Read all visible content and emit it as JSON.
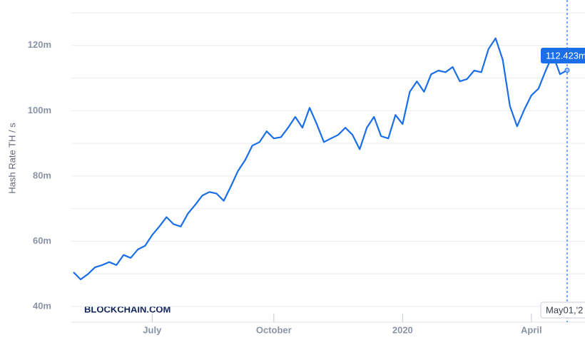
{
  "chart_data": {
    "type": "line",
    "y_axis_title": "Hash Rate TH / s",
    "brand": "BLOCKCHAIN.COM",
    "categories": [
      null,
      null,
      null,
      null,
      null,
      null,
      null,
      null,
      null,
      null,
      null,
      "July",
      null,
      null,
      null,
      null,
      null,
      null,
      null,
      null,
      null,
      null,
      null,
      null,
      null,
      null,
      null,
      null,
      "October",
      null,
      null,
      null,
      null,
      null,
      null,
      null,
      null,
      null,
      null,
      null,
      null,
      null,
      null,
      null,
      null,
      null,
      "2020",
      null,
      null,
      null,
      null,
      null,
      null,
      null,
      null,
      null,
      null,
      null,
      null,
      null,
      null,
      null,
      null,
      null,
      "April",
      null,
      null,
      null,
      null,
      null
    ],
    "series": [
      {
        "name": "Hash Rate",
        "color": "#1a6ee8",
        "values": [
          50.5,
          48.3,
          49.9,
          52,
          52.7,
          53.6,
          52.7,
          55.8,
          54.9,
          57.5,
          58.6,
          61.9,
          64.5,
          67.4,
          65.2,
          64.5,
          68.5,
          71.1,
          74,
          75.1,
          74.6,
          72.4,
          76.8,
          81.6,
          84.9,
          89.3,
          90.4,
          93.7,
          91.5,
          91.9,
          94.8,
          98.1,
          94.8,
          100.9,
          95.9,
          90.4,
          91.5,
          92.6,
          94.8,
          92.6,
          88.2,
          94.8,
          98.1,
          92.2,
          91.5,
          98.7,
          95.9,
          105.8,
          109,
          105.8,
          111.2,
          112.3,
          111.8,
          113.4,
          109,
          109.7,
          112.3,
          111.8,
          118.9,
          122.2,
          115.6,
          101.4,
          95.2,
          100.3,
          104.7,
          106.8,
          112.3,
          117.2,
          111.2,
          112.423
        ]
      }
    ],
    "ylim": [
      40,
      130
    ],
    "yticks": [
      {
        "value": 40,
        "label": "40m"
      },
      {
        "value": 60,
        "label": "60m"
      },
      {
        "value": 80,
        "label": "80m"
      },
      {
        "value": 100,
        "label": "100m"
      },
      {
        "value": 120,
        "label": "120m"
      }
    ],
    "grid_lines": [
      40,
      50,
      60,
      70,
      80,
      90,
      100,
      110,
      120,
      130
    ],
    "tooltip": {
      "value_label": "112.423m",
      "date_label": "May01,'2"
    }
  }
}
